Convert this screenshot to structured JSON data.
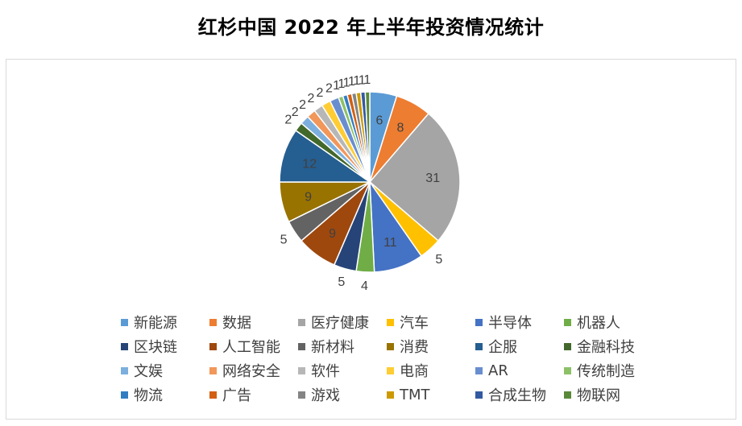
{
  "title": "红杉中国 2022 年上半年投资情况统计",
  "chart_data": {
    "type": "pie",
    "title": "红杉中国 2022 年上半年投资情况统计",
    "categories": [
      "新能源",
      "数据",
      "医疗健康",
      "汽车",
      "半导体",
      "机器人",
      "区块链",
      "人工智能",
      "新材料",
      "消费",
      "企服",
      "金融科技",
      "文娱",
      "网络安全",
      "软件",
      "电商",
      "AR",
      "传统制造",
      "物流",
      "广告",
      "游戏",
      "TMT",
      "合成生物",
      "物联网"
    ],
    "values": [
      6,
      8,
      31,
      5,
      11,
      4,
      5,
      9,
      5,
      9,
      12,
      2,
      2,
      2,
      2,
      2,
      2,
      1,
      1,
      1,
      1,
      1,
      1,
      1
    ],
    "colors": [
      "#5B9BD5",
      "#ED7D31",
      "#A5A5A5",
      "#FFC000",
      "#4472C4",
      "#70AD47",
      "#264478",
      "#9E480E",
      "#636363",
      "#997300",
      "#255E91",
      "#43682B",
      "#7CAFDD",
      "#F1975A",
      "#B7B7B7",
      "#FFCD33",
      "#698ED0",
      "#8CC168",
      "#327DC2",
      "#D26012",
      "#848484",
      "#CC9A00",
      "#335AA1",
      "#5A8A39"
    ],
    "label_inside": [
      true,
      true,
      true,
      false,
      true,
      false,
      false,
      true,
      false,
      true,
      true,
      false,
      false,
      false,
      false,
      false,
      false,
      false,
      false,
      false,
      false,
      false,
      false,
      false
    ],
    "legend_position": "bottom"
  }
}
